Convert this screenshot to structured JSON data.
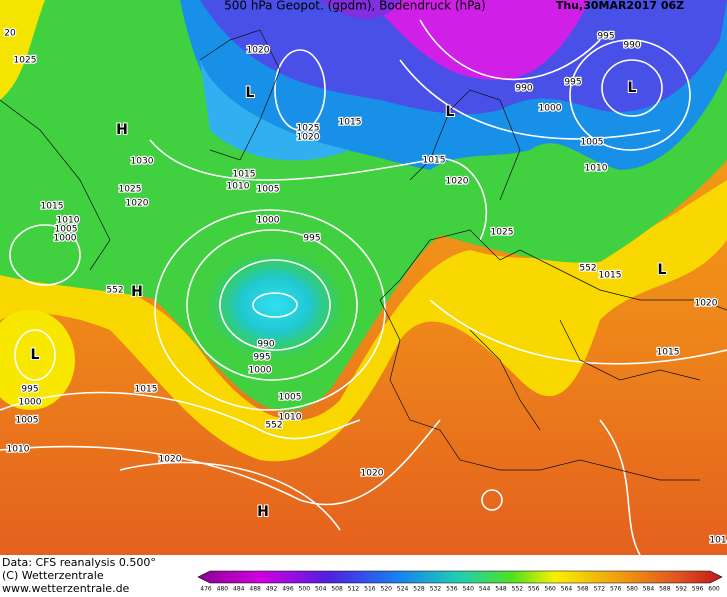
{
  "header": {
    "title": "500 hPa Geopot. (gpdm), Bodendruck (hPa)",
    "date": "Thu,30MAR2017 06Z"
  },
  "footer": {
    "source": "Data: CFS reanalysis 0.500°",
    "copyright": "(C) Wetterzentrale",
    "url": "www.wetterzentrale.de"
  },
  "colorbar": {
    "labels": [
      476,
      480,
      484,
      488,
      492,
      496,
      500,
      504,
      508,
      512,
      516,
      520,
      524,
      528,
      532,
      536,
      540,
      544,
      548,
      552,
      556,
      560,
      564,
      568,
      572,
      576,
      580,
      584,
      588,
      592,
      596,
      600
    ]
  },
  "map_labels": [
    "L",
    "L",
    "L",
    "L",
    "L",
    "H",
    "H",
    "H",
    "20",
    "1025",
    "1020",
    "995",
    "990",
    "990",
    "995",
    "1000",
    "1005",
    "1010",
    "1025",
    "1020",
    "1015",
    "1015",
    "1020",
    "1030",
    "1025",
    "1020",
    "1015",
    "1010",
    "1005",
    "1015",
    "1010",
    "1005",
    "1000",
    "1000",
    "995",
    "552",
    "552",
    "1015",
    "1025",
    "1020",
    "1015",
    "990",
    "995",
    "1000",
    "995",
    "1000",
    "1005",
    "1010",
    "1015",
    "1005",
    "1010",
    "552",
    "1020",
    "1020",
    "101"
  ]
}
